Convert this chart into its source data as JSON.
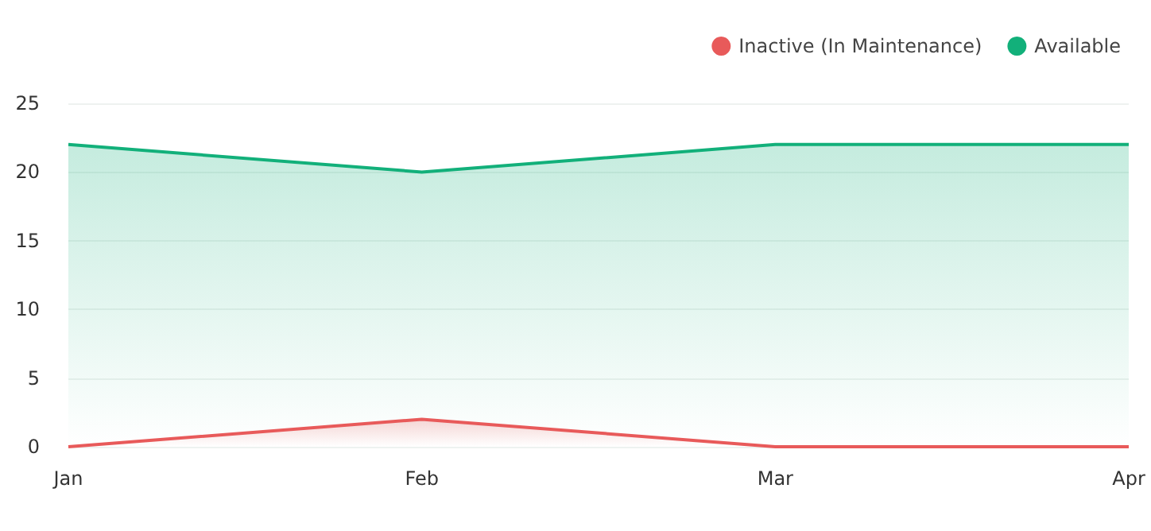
{
  "chart_data": {
    "type": "area",
    "categories": [
      "Jan",
      "Feb",
      "Mar",
      "Apr"
    ],
    "series": [
      {
        "name": "Inactive (In Maintenance)",
        "color": "#e85a5a",
        "values": [
          0,
          2,
          0,
          0
        ]
      },
      {
        "name": "Available",
        "color": "#12b07a",
        "values": [
          22,
          20,
          22,
          22
        ]
      }
    ],
    "ylim": [
      0,
      25
    ],
    "yticks": [
      0,
      5,
      10,
      15,
      20,
      25
    ],
    "grid": "y",
    "legend": "top right",
    "marker": "none"
  }
}
